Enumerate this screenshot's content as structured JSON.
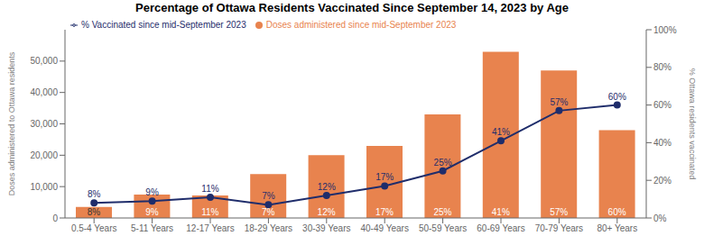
{
  "chart_data": {
    "type": "bar",
    "title": "Percentage of Ottawa Residents Vaccinated Since September 14, 2023 by Age",
    "categories": [
      "0.5-4 Years",
      "5-11 Years",
      "12-17 Years",
      "18-29 Years",
      "30-39 Years",
      "40-49 Years",
      "50-59 Years",
      "60-69 Years",
      "70-79 Years",
      "80+ Years"
    ],
    "series": [
      {
        "name": "Doses administered since mid-September 2023",
        "type": "bar",
        "color": "#E8834E",
        "values": [
          3500,
          7500,
          7200,
          14000,
          20000,
          23000,
          33000,
          53000,
          47000,
          28000
        ]
      },
      {
        "name": "% Vaccinated since mid-September 2023",
        "type": "line",
        "axis": "y2",
        "color": "#1F2D6B",
        "marker": "circle",
        "values": [
          8,
          9,
          11,
          7,
          12,
          17,
          25,
          41,
          57,
          60
        ],
        "data_labels": true,
        "value_labels": [
          "8%",
          "9%",
          "11%",
          "7%",
          "12%",
          "17%",
          "25%",
          "41%",
          "57%",
          "60%"
        ]
      }
    ],
    "annotations": [
      "8%",
      "9%",
      "11%",
      "7%",
      "12%",
      "17%",
      "25%",
      "41%",
      "57%",
      "60%"
    ],
    "ylabel": "Doses administered to Ottawa residents",
    "y2label": "% Ottawa residents vaccinated",
    "ylim": [
      0,
      60000
    ],
    "yticks": [
      0,
      {
        "value": 10000,
        "label": "10,000"
      },
      {
        "value": 20000,
        "label": "20,000"
      },
      {
        "value": 30000,
        "label": "30,000"
      },
      {
        "value": 40000,
        "label": "40,000"
      },
      {
        "value": 50000,
        "label": "50,000"
      }
    ],
    "y2lim": [
      0,
      100
    ],
    "y2ticks": [
      {
        "value": 0,
        "label": "0%"
      },
      {
        "value": 20,
        "label": "20%"
      },
      {
        "value": 40,
        "label": "40%"
      },
      {
        "value": 60,
        "label": "60%"
      },
      {
        "value": 80,
        "label": "80%"
      },
      {
        "value": 100,
        "label": "100%"
      }
    ],
    "legend": "upper left"
  }
}
